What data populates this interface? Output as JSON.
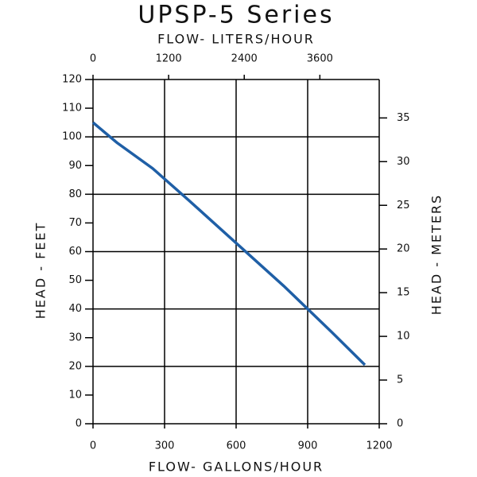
{
  "chart_data": {
    "type": "line",
    "title": "UPSP-5 Series",
    "xlabel": "FLOW- GALLONS/HOUR",
    "x2label": "FLOW- LITERS/HOUR",
    "ylabel": "HEAD - FEET",
    "y2label": "HEAD - METERS",
    "xlim": [
      0,
      1200
    ],
    "xticks": [
      0,
      300,
      600,
      900,
      1200
    ],
    "x2lim": [
      0,
      4542
    ],
    "x2ticks": [
      0,
      1200,
      2400,
      3600
    ],
    "ylim": [
      0,
      120
    ],
    "yticks": [
      0,
      10,
      20,
      30,
      40,
      50,
      60,
      70,
      80,
      90,
      100,
      110,
      120
    ],
    "y2lim": [
      0,
      39.4
    ],
    "y2ticks": [
      0,
      5,
      10,
      15,
      20,
      25,
      30,
      35
    ],
    "xgrid": [
      300,
      600,
      900
    ],
    "ygrid": [
      20,
      40,
      60,
      80,
      100
    ],
    "series": [
      {
        "color": "#1f5fa6",
        "x": [
          0,
          100,
          250,
          400,
          600,
          800,
          900,
          1000,
          1140
        ],
        "values": [
          105,
          98,
          89,
          78,
          63,
          48,
          40,
          32,
          20.5
        ]
      }
    ]
  }
}
